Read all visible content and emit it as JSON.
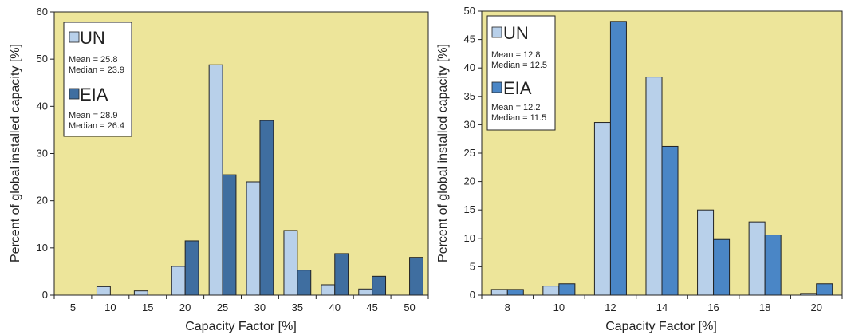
{
  "colors": {
    "plot_bg": "#ede59a",
    "un": "#b8d0ea",
    "eia_left": "#3f6ea0",
    "eia_right": "#4a86c6",
    "stroke": "#222222"
  },
  "chart_data": [
    {
      "type": "bar",
      "xlabel": "Capacity Factor [%]",
      "ylabel": "Percent of global installed capacity [%]",
      "ylim": [
        0,
        60
      ],
      "yticks": [
        "0",
        "10",
        "20",
        "30",
        "40",
        "50",
        "60"
      ],
      "categories": [
        "5",
        "10",
        "15",
        "20",
        "25",
        "30",
        "35",
        "40",
        "45",
        "50"
      ],
      "grid": false,
      "legend_position": "top-left",
      "series": [
        {
          "name": "UN",
          "values": [
            0,
            1.8,
            0.9,
            6.1,
            48.8,
            24.0,
            13.7,
            2.2,
            1.3,
            0
          ]
        },
        {
          "name": "EIA",
          "values": [
            0,
            0,
            0,
            11.5,
            25.5,
            37.0,
            5.3,
            8.8,
            4.0,
            8.0
          ]
        }
      ],
      "legend": [
        {
          "name": "UN",
          "mean": "Mean = 25.8",
          "median": "Median = 23.9"
        },
        {
          "name": "EIA",
          "mean": "Mean = 28.9",
          "median": "Median = 26.4"
        }
      ]
    },
    {
      "type": "bar",
      "xlabel": "Capacity Factor [%]",
      "ylabel": "Percent of global installed capacity [%]",
      "ylim": [
        0,
        50
      ],
      "yticks": [
        "0",
        "5",
        "10",
        "15",
        "20",
        "25",
        "30",
        "35",
        "40",
        "45",
        "50"
      ],
      "categories": [
        "8",
        "10",
        "12",
        "14",
        "16",
        "18",
        "20"
      ],
      "grid": false,
      "legend_position": "top-left",
      "series": [
        {
          "name": "UN",
          "values": [
            1.0,
            1.6,
            30.4,
            38.4,
            15.0,
            12.9,
            0.3
          ]
        },
        {
          "name": "EIA",
          "values": [
            1.0,
            2.0,
            48.2,
            26.2,
            9.8,
            10.6,
            2.0
          ]
        }
      ],
      "legend": [
        {
          "name": "UN",
          "mean": "Mean = 12.8",
          "median": "Median = 12.5"
        },
        {
          "name": "EIA",
          "mean": "Mean = 12.2",
          "median": "Median = 11.5"
        }
      ]
    }
  ]
}
